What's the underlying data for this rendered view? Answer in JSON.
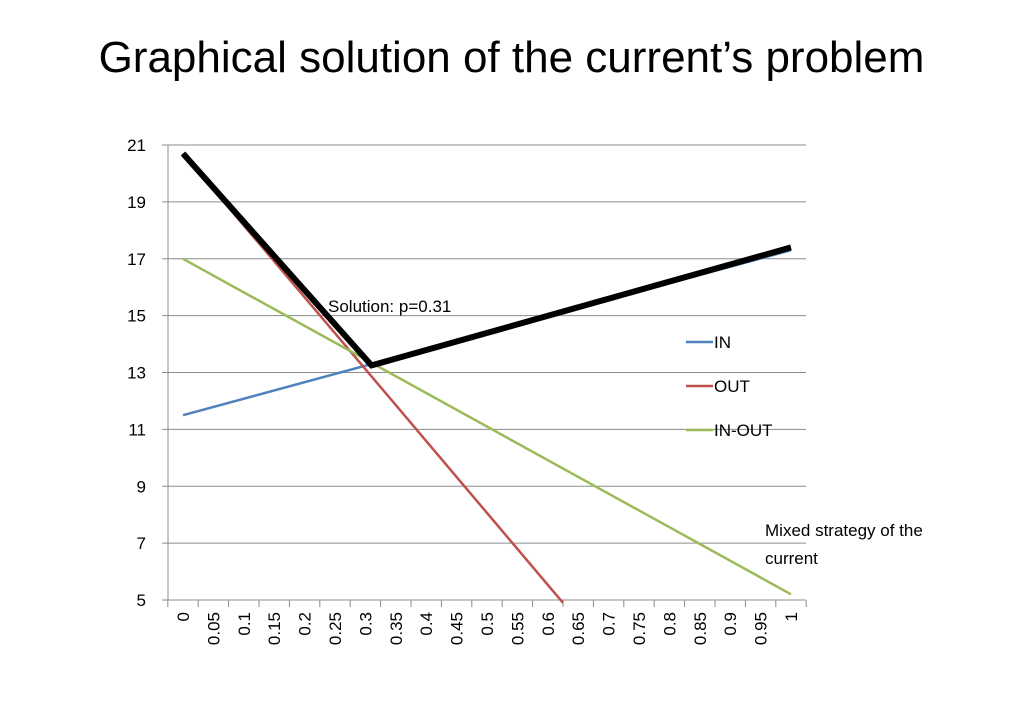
{
  "chart_data": {
    "type": "line",
    "title": "Graphical solution of the current’s problem",
    "x": [
      "0",
      "0.05",
      "0.1",
      "0.15",
      "0.2",
      "0.25",
      "0.3",
      "0.35",
      "0.4",
      "0.45",
      "0.5",
      "0.55",
      "0.6",
      "0.65",
      "0.7",
      "0.75",
      "0.8",
      "0.85",
      "0.9",
      "0.95",
      "1"
    ],
    "ylim": [
      5,
      21
    ],
    "yticks": [
      5,
      7,
      9,
      11,
      13,
      15,
      17,
      19,
      21
    ],
    "grid": true,
    "legend": "right",
    "series": [
      {
        "name": "IN",
        "color": "#4f81bd",
        "points": [
          [
            0,
            11.5
          ],
          [
            1,
            17.3
          ]
        ]
      },
      {
        "name": "OUT",
        "color": "#c0504d",
        "points": [
          [
            0,
            20.7
          ],
          [
            0.625,
            4.9
          ]
        ]
      },
      {
        "name": "IN-OUT",
        "color": "#9bbb59",
        "points": [
          [
            0,
            17.0
          ],
          [
            1,
            5.2
          ]
        ]
      }
    ],
    "solution_line": {
      "color": "#000000",
      "points": [
        [
          0,
          20.7
        ],
        [
          0.31,
          13.25
        ],
        [
          1,
          17.4
        ]
      ]
    },
    "annotations": {
      "solution": "Solution: p=0.31",
      "xlabel_line1": "Mixed strategy of the",
      "xlabel_line2": "current"
    }
  }
}
